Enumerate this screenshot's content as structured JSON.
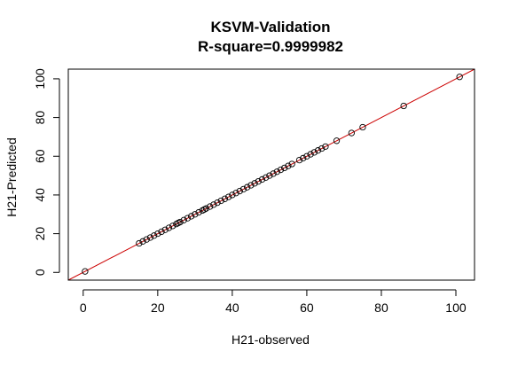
{
  "chart_data": {
    "type": "scatter",
    "title": "KSVM-Validation",
    "subtitle": "R-square=0.9999982",
    "xlabel": "H21-observed",
    "ylabel": "H21-Predicted",
    "xlim": [
      -4,
      105
    ],
    "ylim": [
      -4,
      105
    ],
    "x_ticks": [
      0,
      20,
      40,
      60,
      80,
      100
    ],
    "y_ticks": [
      0,
      20,
      40,
      60,
      80,
      100
    ],
    "grid": false,
    "reference_line": {
      "slope": 1,
      "intercept": 0,
      "color": "#cc0000"
    },
    "points_color": "#000000",
    "x": [
      0.5,
      15,
      16,
      17,
      18,
      19,
      20,
      21,
      22,
      23,
      24,
      25,
      25.5,
      26,
      27,
      28,
      29,
      30,
      31,
      32,
      32.5,
      33,
      34,
      35,
      36,
      37,
      38,
      39,
      40,
      41,
      42,
      43,
      44,
      45,
      46,
      47,
      48,
      49,
      50,
      51,
      52,
      53,
      54,
      55,
      56,
      58,
      59,
      60,
      61,
      62,
      63,
      64,
      65,
      68,
      72,
      75,
      86,
      101
    ],
    "y": [
      0.5,
      15,
      16,
      17,
      18,
      19,
      20,
      21,
      22,
      23,
      24,
      25,
      25.5,
      26,
      27,
      28,
      29,
      30,
      31,
      32,
      32.5,
      33,
      34,
      35,
      36,
      37,
      38,
      39,
      40,
      41,
      42,
      43,
      44,
      45,
      46,
      47,
      48,
      49,
      50,
      51,
      52,
      53,
      54,
      55,
      56,
      58,
      59,
      60,
      61,
      62,
      63,
      64,
      65,
      68,
      72,
      75,
      86,
      101
    ]
  }
}
